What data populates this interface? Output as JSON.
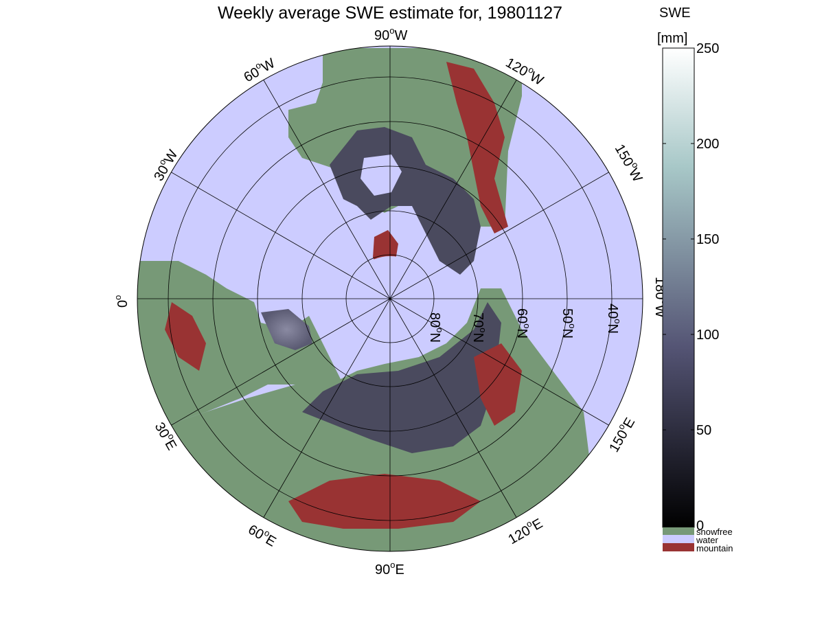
{
  "title": "Weekly average SWE estimate for, 19801127",
  "colorbar": {
    "label_line1": "SWE",
    "label_line2": "[mm]",
    "ticks": [
      "250",
      "200",
      "150",
      "100",
      "50",
      "0"
    ],
    "tick_values": [
      250,
      200,
      150,
      100,
      50,
      0
    ],
    "range": [
      0,
      250
    ],
    "colormap": "bone",
    "categories": [
      {
        "label": "snowfree",
        "color": "#779977"
      },
      {
        "label": "water",
        "color": "#ccccff"
      },
      {
        "label": "mountain",
        "color": "#993333"
      }
    ]
  },
  "map": {
    "projection": "north-polar-stereographic",
    "ocean_color": "#ccccff",
    "land_color": "#779977",
    "mountain_color": "#993333",
    "longitude_labels": {
      "top": "90",
      "top_suffix": "W",
      "upper_left_60": "60",
      "upper_left_60_suffix": "W",
      "left_30": "30",
      "left_30_suffix": "W",
      "left_0": "0",
      "upper_right_120": "120",
      "upper_right_120_suffix": "W",
      "right_150": "150",
      "right_150_suffix": "W",
      "right_180": "180",
      "right_180_suffix": "W",
      "lower_right_150": "150",
      "lower_right_150_suffix": "E",
      "lower_right_120": "120",
      "lower_right_120_suffix": "E",
      "bottom_90": "90",
      "bottom_90_suffix": "E",
      "lower_left_60": "60",
      "lower_left_60_suffix": "E",
      "lower_left_30": "30",
      "lower_left_30_suffix": "E"
    },
    "latitude_labels": [
      {
        "value": "80",
        "suffix": "N"
      },
      {
        "value": "70",
        "suffix": "N"
      },
      {
        "value": "60",
        "suffix": "N"
      },
      {
        "value": "50",
        "suffix": "N"
      },
      {
        "value": "40",
        "suffix": "N"
      }
    ],
    "degree_symbol": "o"
  }
}
